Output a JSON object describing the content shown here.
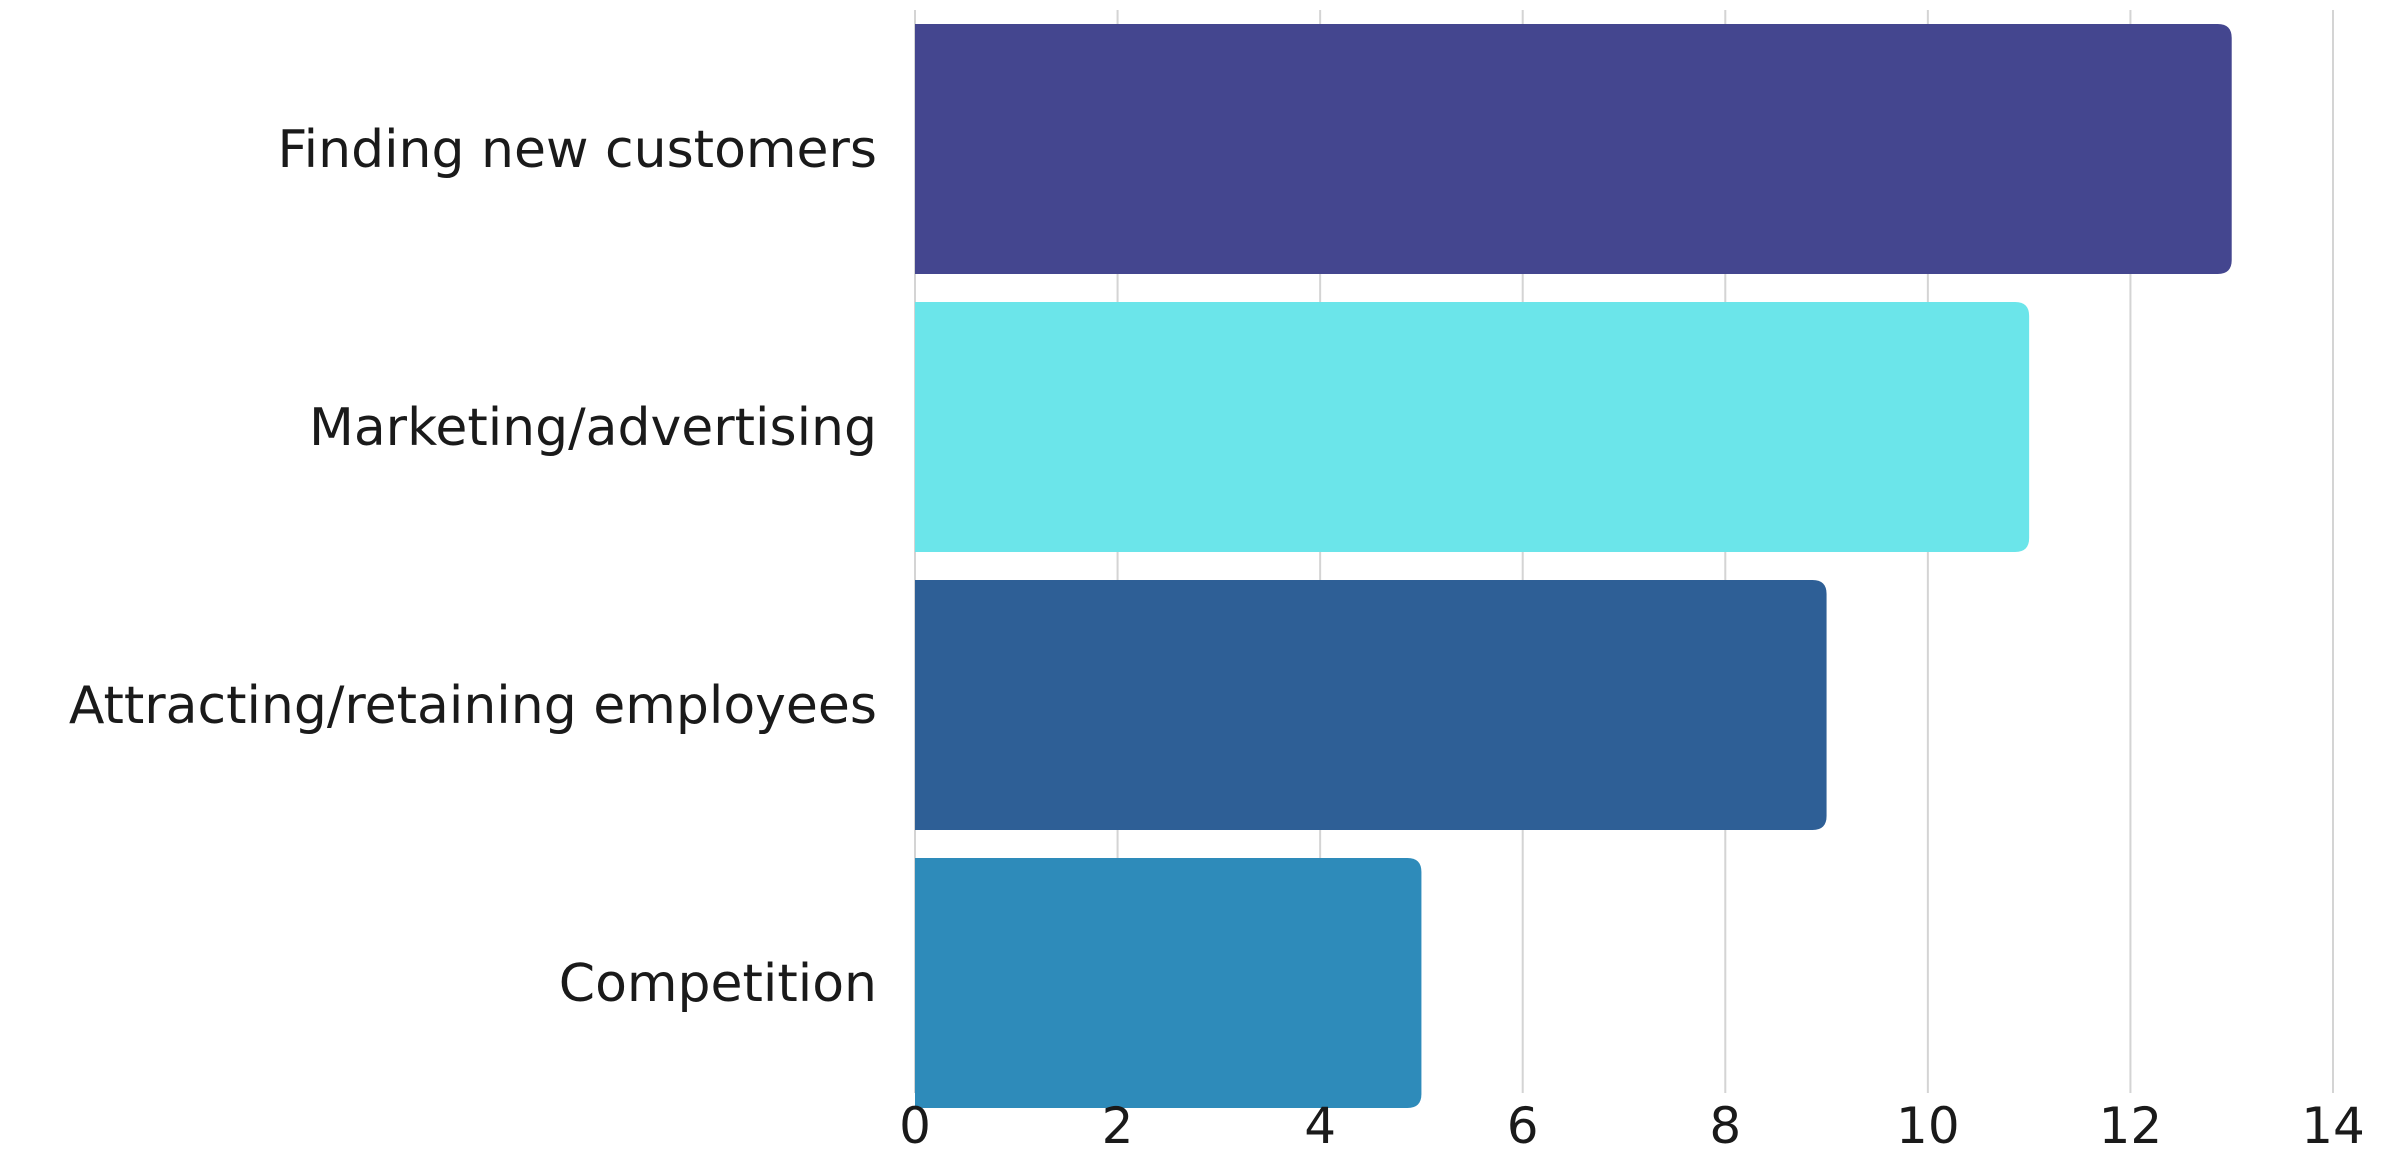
{
  "chart_data": {
    "type": "bar",
    "orientation": "horizontal",
    "categories": [
      "Finding new customers",
      "Marketing/advertising",
      "Attracting/retaining employees",
      "Competition"
    ],
    "values": [
      13,
      11,
      9,
      5
    ],
    "colors": [
      "#44468f",
      "#6be5ea",
      "#2e5f96",
      "#2e8bba"
    ],
    "xlim": [
      0,
      14
    ],
    "xticks": [
      0,
      2,
      4,
      6,
      8,
      10,
      12,
      14
    ],
    "grid": true,
    "legend": "none"
  }
}
